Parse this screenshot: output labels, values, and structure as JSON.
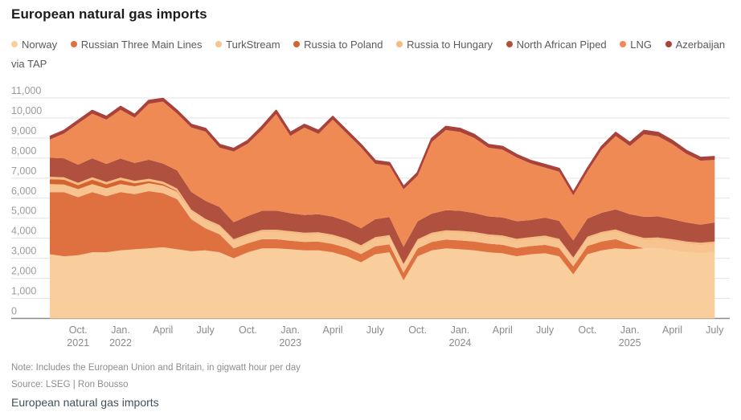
{
  "title": "European natural gas imports",
  "note": "Note: Includes the European Union and Britain, in gigwatt hour per day",
  "source": "Source: LSEG | Ron Bousso",
  "footer_title": "European natural gas imports",
  "colors": {
    "background": "#ffffff",
    "gridline": "#e3e3e3",
    "axis_line": "#8a8a8a",
    "y_tick_text": "#9b9b9b",
    "x_tick_text": "#8a8a8a",
    "legend_text": "#5a5a5a",
    "title_text": "#1c1c1c"
  },
  "chart_data": {
    "type": "area",
    "stacked": true,
    "title": "European natural gas imports",
    "unit": "gigawatt hour per day",
    "ylim": [
      0,
      11000
    ],
    "ytick_step": 1000,
    "grid": "horizontal",
    "legend_position": "top",
    "x": [
      "Aug 2021",
      "Sep 2021",
      "Oct 2021",
      "Nov 2021",
      "Dec 2021",
      "Jan 2022",
      "Feb 2022",
      "Mar 2022",
      "Apr 2022",
      "May 2022",
      "Jun 2022",
      "Jul 2022",
      "Aug 2022",
      "Sep 2022",
      "Oct 2022",
      "Nov 2022",
      "Dec 2022",
      "Jan 2023",
      "Feb 2023",
      "Mar 2023",
      "Apr 2023",
      "May 2023",
      "Jun 2023",
      "Jul 2023",
      "Aug 2023",
      "Sep 2023",
      "Oct 2023",
      "Nov 2023",
      "Dec 2023",
      "Jan 2024",
      "Feb 2024",
      "Mar 2024",
      "Apr 2024",
      "May 2024",
      "Jun 2024",
      "Jul 2024",
      "Aug 2024",
      "Sep 2024",
      "Oct 2024",
      "Nov 2024",
      "Dec 2024",
      "Jan 2025",
      "Feb 2025",
      "Mar 2025",
      "Apr 2025",
      "May 2025",
      "Jun 2025",
      "Jul 2025"
    ],
    "xticks": [
      {
        "index": 2,
        "label": "Oct.",
        "year": "2021"
      },
      {
        "index": 5,
        "label": "Jan.",
        "year": "2022"
      },
      {
        "index": 8,
        "label": "April",
        "year": ""
      },
      {
        "index": 11,
        "label": "July",
        "year": ""
      },
      {
        "index": 14,
        "label": "Oct.",
        "year": ""
      },
      {
        "index": 17,
        "label": "Jan.",
        "year": "2023"
      },
      {
        "index": 20,
        "label": "April",
        "year": ""
      },
      {
        "index": 23,
        "label": "July",
        "year": ""
      },
      {
        "index": 26,
        "label": "Oct.",
        "year": ""
      },
      {
        "index": 29,
        "label": "Jan.",
        "year": "2024"
      },
      {
        "index": 32,
        "label": "April",
        "year": ""
      },
      {
        "index": 35,
        "label": "July",
        "year": ""
      },
      {
        "index": 38,
        "label": "Oct.",
        "year": ""
      },
      {
        "index": 41,
        "label": "Jan.",
        "year": "2025"
      },
      {
        "index": 44,
        "label": "April",
        "year": ""
      },
      {
        "index": 47,
        "label": "July",
        "year": ""
      }
    ],
    "series": [
      {
        "name": "Norway",
        "color": "#FACD9C",
        "values": [
          3200,
          3100,
          3150,
          3300,
          3300,
          3400,
          3450,
          3500,
          3550,
          3450,
          3350,
          3400,
          3300,
          3000,
          3300,
          3500,
          3500,
          3450,
          3400,
          3400,
          3300,
          3100,
          2800,
          3200,
          3300,
          1900,
          3100,
          3400,
          3500,
          3450,
          3400,
          3300,
          3250,
          3100,
          3200,
          3250,
          3100,
          2200,
          3200,
          3400,
          3500,
          3450,
          3500,
          3500,
          3400,
          3300,
          3250,
          3300
        ]
      },
      {
        "name": "Russian Three Main Lines",
        "color": "#DF7040",
        "values": [
          3100,
          3200,
          2900,
          3000,
          2800,
          2900,
          2750,
          2850,
          2700,
          2500,
          1600,
          1100,
          900,
          500,
          450,
          450,
          450,
          430,
          420,
          430,
          420,
          420,
          410,
          400,
          400,
          380,
          400,
          420,
          430,
          440,
          440,
          430,
          420,
          410,
          410,
          420,
          420,
          400,
          420,
          440,
          450,
          250,
          0,
          0,
          0,
          0,
          0,
          0
        ]
      },
      {
        "name": "TurkStream",
        "color": "#F7C48F",
        "values": [
          400,
          380,
          400,
          400,
          390,
          400,
          390,
          400,
          380,
          370,
          360,
          350,
          340,
          330,
          340,
          350,
          360,
          350,
          340,
          350,
          340,
          330,
          320,
          330,
          340,
          320,
          330,
          340,
          350,
          360,
          350,
          340,
          350,
          340,
          330,
          340,
          330,
          320,
          340,
          360,
          370,
          380,
          400,
          420,
          430,
          420,
          410,
          420
        ]
      },
      {
        "name": "Russia to Poland",
        "color": "#D3642F",
        "values": [
          250,
          240,
          200,
          220,
          200,
          210,
          150,
          100,
          80,
          40,
          0,
          0,
          0,
          0,
          0,
          0,
          0,
          0,
          0,
          0,
          0,
          0,
          0,
          0,
          0,
          0,
          0,
          0,
          0,
          0,
          0,
          0,
          0,
          0,
          0,
          0,
          0,
          0,
          0,
          0,
          0,
          0,
          0,
          0,
          0,
          0,
          0,
          0
        ]
      },
      {
        "name": "Russia to Hungary",
        "color": "#F5BB81",
        "values": [
          120,
          120,
          120,
          120,
          120,
          120,
          120,
          120,
          120,
          120,
          120,
          120,
          120,
          120,
          120,
          120,
          120,
          120,
          120,
          120,
          120,
          120,
          120,
          120,
          120,
          120,
          120,
          120,
          120,
          120,
          120,
          120,
          120,
          120,
          120,
          120,
          120,
          120,
          120,
          120,
          120,
          120,
          120,
          120,
          120,
          120,
          120,
          120
        ]
      },
      {
        "name": "North African Piped",
        "color": "#B0513F",
        "values": [
          950,
          950,
          900,
          950,
          900,
          950,
          900,
          950,
          900,
          900,
          880,
          900,
          900,
          850,
          900,
          950,
          950,
          900,
          880,
          900,
          900,
          880,
          850,
          900,
          900,
          850,
          900,
          950,
          1000,
          1000,
          950,
          900,
          900,
          880,
          850,
          900,
          900,
          850,
          900,
          950,
          1000,
          1000,
          1050,
          1050,
          1000,
          950,
          900,
          950
        ]
      },
      {
        "name": "LNG",
        "color": "#F08A54",
        "values": [
          910,
          1240,
          2050,
          2230,
          2210,
          2430,
          2260,
          2790,
          3090,
          2840,
          3220,
          3450,
          2960,
          3530,
          3610,
          4040,
          4820,
          3860,
          4360,
          4010,
          4840,
          4370,
          4030,
          2770,
          2560,
          2870,
          2270,
          3580,
          4000,
          3930,
          3750,
          3430,
          3380,
          3180,
          2820,
          2490,
          2450,
          2250,
          2340,
          3140,
          3660,
          3400,
          4120,
          4000,
          3750,
          3420,
          3190,
          3120
        ]
      },
      {
        "name": "Azerbaijan via TAP",
        "color": "#A8423A",
        "values": [
          170,
          170,
          180,
          180,
          180,
          190,
          180,
          190,
          180,
          180,
          170,
          180,
          180,
          170,
          180,
          190,
          200,
          190,
          180,
          190,
          180,
          180,
          170,
          180,
          180,
          160,
          180,
          190,
          200,
          200,
          190,
          180,
          180,
          170,
          170,
          180,
          180,
          160,
          180,
          190,
          200,
          200,
          210,
          210,
          200,
          190,
          180,
          190
        ]
      }
    ]
  }
}
